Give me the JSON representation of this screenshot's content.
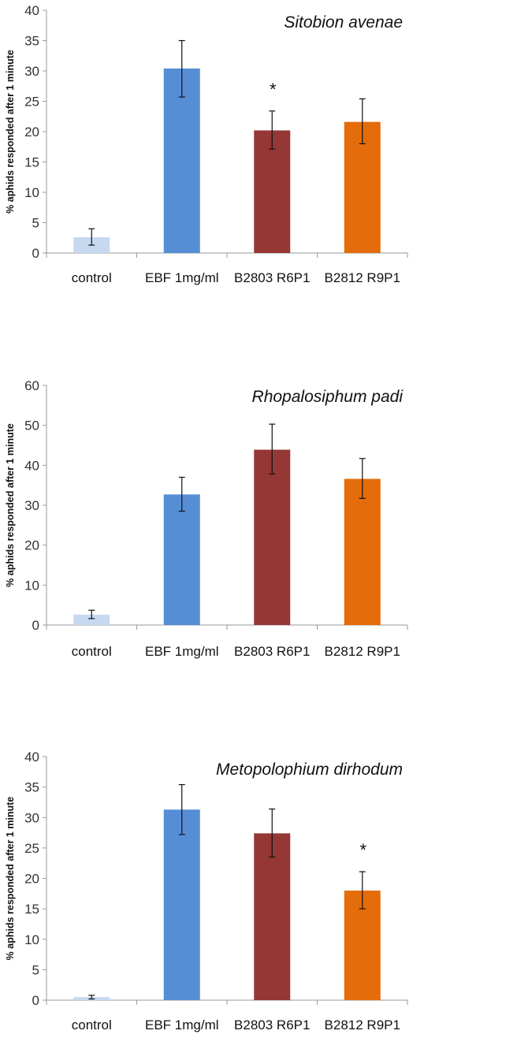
{
  "chart_data": [
    {
      "type": "bar",
      "title": "Sitobion avenae",
      "xlabel": "",
      "ylabel": "% aphids responded after 1 minute",
      "categories": [
        "control",
        "EBF 1mg/ml",
        "B2803 R6P1",
        "B2812 R9P1"
      ],
      "values": [
        2.6,
        30.4,
        20.2,
        21.6
      ],
      "error_low": [
        1.3,
        25.7,
        17.1,
        18.0
      ],
      "error_high": [
        4.0,
        35.0,
        23.4,
        25.4
      ],
      "annotations": [
        "",
        "",
        "*",
        ""
      ],
      "ylim": [
        0,
        40
      ],
      "yticks": [
        0,
        5,
        10,
        15,
        20,
        25,
        30,
        35,
        40
      ],
      "colors": [
        "#c6d9f1",
        "#558ed5",
        "#953735",
        "#e46c0a"
      ],
      "grid": false
    },
    {
      "type": "bar",
      "title": "Rhopalosiphum padi",
      "xlabel": "",
      "ylabel": "% aphids responded after 1 minute",
      "categories": [
        "control",
        "EBF 1mg/ml",
        "B2803 R6P1",
        "B2812 R9P1"
      ],
      "values": [
        2.6,
        32.7,
        43.9,
        36.6
      ],
      "error_low": [
        1.6,
        28.5,
        37.8,
        31.7
      ],
      "error_high": [
        3.7,
        37.0,
        50.3,
        41.7
      ],
      "annotations": [
        "",
        "",
        "",
        ""
      ],
      "ylim": [
        0,
        60
      ],
      "yticks": [
        0,
        10,
        20,
        30,
        40,
        50,
        60
      ],
      "colors": [
        "#c6d9f1",
        "#558ed5",
        "#953735",
        "#e46c0a"
      ],
      "grid": false
    },
    {
      "type": "bar",
      "title": "Metopolophium dirhodum",
      "xlabel": "",
      "ylabel": "% aphids responded after 1 minute",
      "categories": [
        "control",
        "EBF 1mg/ml",
        "B2803 R6P1",
        "B2812 R9P1"
      ],
      "values": [
        0.5,
        31.3,
        27.4,
        18.0
      ],
      "error_low": [
        0.2,
        27.2,
        23.5,
        15.0
      ],
      "error_high": [
        0.8,
        35.4,
        31.4,
        21.1
      ],
      "annotations": [
        "",
        "",
        "",
        "*"
      ],
      "ylim": [
        0,
        40
      ],
      "yticks": [
        0,
        5,
        10,
        15,
        20,
        25,
        30,
        35,
        40
      ],
      "colors": [
        "#c6d9f1",
        "#558ed5",
        "#953735",
        "#e46c0a"
      ],
      "grid": false
    }
  ]
}
